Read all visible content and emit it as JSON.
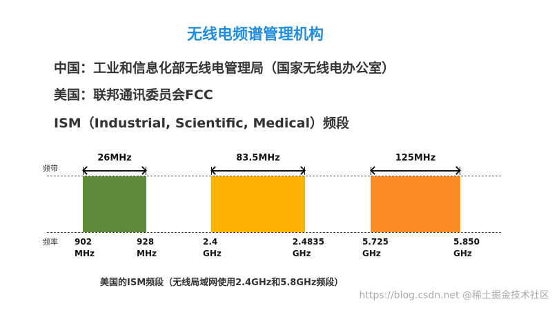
{
  "title": "无线电频谱管理机构",
  "lines": [
    "中国：工业和信息化部无线电管理局（国家无线电办公室）",
    "美国：联邦通讯委员会FCC",
    "ISM（Industrial, Scientific, Medical）频段"
  ],
  "axis": {
    "band_label": "频带",
    "freq_label": "频率"
  },
  "bands": [
    {
      "width": "26MHz",
      "start": [
        "902",
        "MHz"
      ],
      "end": [
        "928",
        "MHz"
      ],
      "color": "#5e8a3a"
    },
    {
      "width": "83.5MHz",
      "start": [
        "2.4",
        "GHz"
      ],
      "end": [
        "2.4835",
        "GHz"
      ],
      "color": "#fdb100"
    },
    {
      "width": "125MHz",
      "start": [
        "5.725",
        "GHz"
      ],
      "end": [
        "5.850",
        "GHz"
      ],
      "color": "#fb8c24"
    }
  ],
  "caption": "美国的ISM频段（无线局域网使用2.4GHz和5.8GHz频段）",
  "watermark": "https://blog.csdn.net  @稀土掘金技术社区"
}
